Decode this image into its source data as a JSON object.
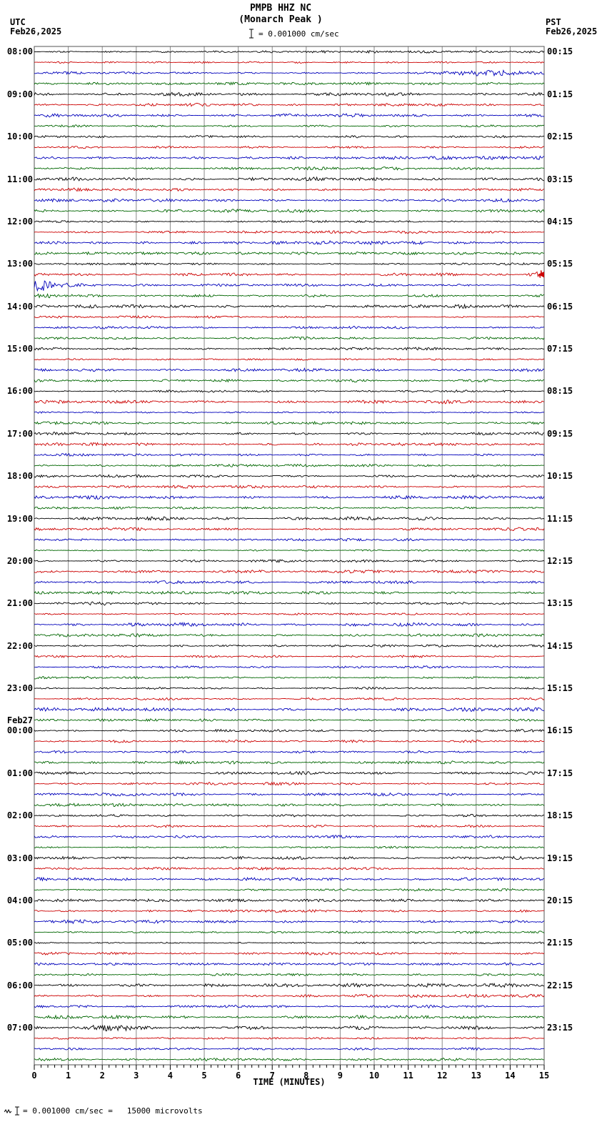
{
  "header": {
    "station_line": "PMPB HHZ NC",
    "location_line": "(Monarch Peak )",
    "tz_left": "UTC",
    "date_left": "Feb26,2025",
    "tz_right": "PST",
    "date_right": "Feb26,2025",
    "scale_label": "= 0.001000 cm/sec"
  },
  "axis": {
    "label": "TIME (MINUTES)",
    "ticks": [
      "0",
      "1",
      "2",
      "3",
      "4",
      "5",
      "6",
      "7",
      "8",
      "9",
      "10",
      "11",
      "12",
      "13",
      "14",
      "15"
    ]
  },
  "footer": {
    "text": "= 0.001000 cm/sec =   15000 microvolts"
  },
  "chart_data": {
    "type": "line",
    "subtype": "helicorder",
    "title": "PMPB HHZ NC (Monarch Peak )",
    "xlabel": "TIME (MINUTES)",
    "xlim": [
      0,
      15
    ],
    "minutes_per_line": 15,
    "lines_per_hour": 4,
    "scale_cm_per_sec": 0.001,
    "scale_microvolts": 15000,
    "trace_colors": [
      "#000000",
      "#cc0000",
      "#0000bb",
      "#006600"
    ],
    "grid_color": "#8a8a8a",
    "hours": [
      {
        "utc": "08:00",
        "pst": "00:15"
      },
      {
        "utc": "09:00",
        "pst": "01:15"
      },
      {
        "utc": "10:00",
        "pst": "02:15"
      },
      {
        "utc": "11:00",
        "pst": "03:15"
      },
      {
        "utc": "12:00",
        "pst": "04:15"
      },
      {
        "utc": "13:00",
        "pst": "05:15"
      },
      {
        "utc": "14:00",
        "pst": "06:15"
      },
      {
        "utc": "15:00",
        "pst": "07:15"
      },
      {
        "utc": "16:00",
        "pst": "08:15"
      },
      {
        "utc": "17:00",
        "pst": "09:15"
      },
      {
        "utc": "18:00",
        "pst": "10:15"
      },
      {
        "utc": "19:00",
        "pst": "11:15"
      },
      {
        "utc": "20:00",
        "pst": "12:15"
      },
      {
        "utc": "21:00",
        "pst": "13:15"
      },
      {
        "utc": "22:00",
        "pst": "14:15"
      },
      {
        "utc": "23:00",
        "pst": "15:15"
      },
      {
        "utc": "00:00",
        "pst": "16:15"
      },
      {
        "utc": "01:00",
        "pst": "17:15"
      },
      {
        "utc": "02:00",
        "pst": "18:15"
      },
      {
        "utc": "03:00",
        "pst": "19:15"
      },
      {
        "utc": "04:00",
        "pst": "20:15"
      },
      {
        "utc": "05:00",
        "pst": "21:15"
      },
      {
        "utc": "06:00",
        "pst": "22:15"
      },
      {
        "utc": "07:00",
        "pst": "23:15"
      }
    ],
    "date_break": {
      "index": 16,
      "label": "Feb27"
    },
    "events": [
      {
        "row": 2,
        "minute": 13.3,
        "amp": 3.5,
        "width": 1.0,
        "note": "elevated noise burst on 08:00 blue trace near minute 13"
      },
      {
        "row": 21,
        "minute": 14.9,
        "amp": 5,
        "width": 0.25,
        "note": "red burst at right edge of 13:00 red trace"
      },
      {
        "row": 22,
        "minute": 0.2,
        "amp": 9,
        "width": 0.22,
        "note": "large event spike at start of 13:00 blue trace"
      },
      {
        "row": 22,
        "minute": 0.8,
        "amp": 2.5,
        "width": 0.9,
        "note": "coda of large spike"
      },
      {
        "row": 23,
        "minute": 0.3,
        "amp": 2,
        "width": 0.5,
        "note": "minor activity start of 13:00 green trace"
      },
      {
        "row": 52,
        "minute": 1.8,
        "amp": 2.5,
        "width": 0.3,
        "note": "small burst on 21:00 black trace"
      },
      {
        "row": 92,
        "minute": 2.2,
        "amp": 5,
        "width": 0.45,
        "note": "burst on 07:00 black trace near minute 2"
      }
    ],
    "edge_marker": {
      "row": 21,
      "color": "#cc0000",
      "note": "left-pointing event continuation arrow at right border"
    }
  }
}
